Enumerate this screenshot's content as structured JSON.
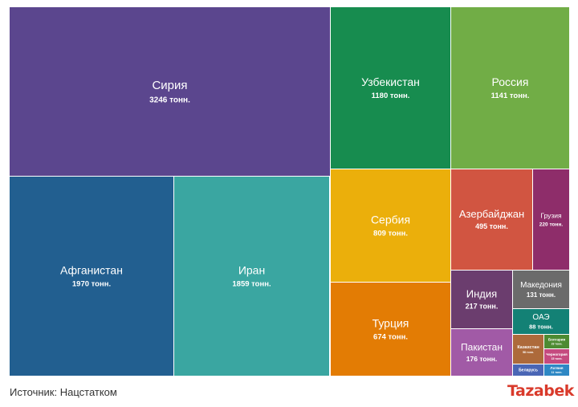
{
  "chart_data": {
    "type": "treemap",
    "unit_suffix": "тонн.",
    "items": [
      {
        "name": "Сирия",
        "value": 3246,
        "value_label": "3246 тонн.",
        "color": "#5b468e"
      },
      {
        "name": "Узбекистан",
        "value": 1180,
        "value_label": "1180 тонн.",
        "color": "#178c4f"
      },
      {
        "name": "Россия",
        "value": 1141,
        "value_label": "1141 тонн.",
        "color": "#71ad46"
      },
      {
        "name": "Афганистан",
        "value": 1970,
        "value_label": "1970 тонн.",
        "color": "#225f90"
      },
      {
        "name": "Иран",
        "value": 1859,
        "value_label": "1859 тонн.",
        "color": "#3aa6a1"
      },
      {
        "name": "Сербия",
        "value": 809,
        "value_label": "809 тонн.",
        "color": "#ebaf0b"
      },
      {
        "name": "Турция",
        "value": 674,
        "value_label": "674 тонн.",
        "color": "#e37c04"
      },
      {
        "name": "Азербайджан",
        "value": 495,
        "value_label": "495 тонн.",
        "color": "#d15541"
      },
      {
        "name": "Грузия",
        "value": 220,
        "value_label": "220 тонн.",
        "color": "#8e2d6a"
      },
      {
        "name": "Индия",
        "value": 217,
        "value_label": "217 тонн.",
        "color": "#6b3d6e"
      },
      {
        "name": "Македония",
        "value": 131,
        "value_label": "131 тонн.",
        "color": "#6b6b6b"
      },
      {
        "name": "Пакистан",
        "value": 176,
        "value_label": "176 тонн.",
        "color": "#a15aa6"
      },
      {
        "name": "ОАЭ",
        "value": 88,
        "value_label": "88 тонн.",
        "color": "#138175"
      },
      {
        "name": "Казахстан",
        "value": 58,
        "value_label": "58 тонн.",
        "color": "#ad6a3b"
      },
      {
        "name": "Болгария",
        "value": 23,
        "value_label": "23 тонн.",
        "color": "#4d8b32"
      },
      {
        "name": "Черногория",
        "value": 15,
        "value_label": "15 тонн.",
        "color": "#c54a7f"
      },
      {
        "name": "Беларусь",
        "value": null,
        "value_label": "",
        "color": "#4a66b5"
      },
      {
        "name": "Латвия",
        "value": 11,
        "value_label": "11 тонн.",
        "color": "#2e88c4"
      }
    ]
  },
  "footer": {
    "source": "Источник: Нацстатком",
    "logo": "Tazabek"
  }
}
